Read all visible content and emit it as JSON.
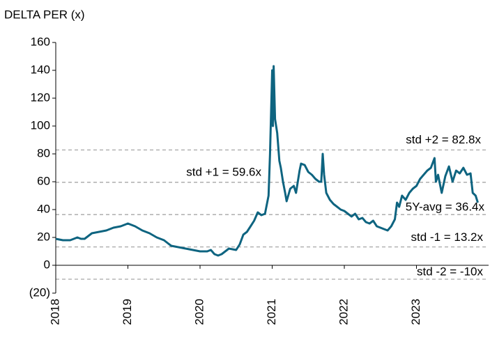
{
  "chart_data": {
    "type": "line",
    "title": "DELTA PER (x)",
    "xlim": [
      2018,
      2024
    ],
    "xticks": [
      2018,
      2019,
      2020,
      2021,
      2022,
      2023
    ],
    "ylim": [
      -20,
      160
    ],
    "yticks": [
      {
        "value": -20,
        "label": "(20)"
      },
      0,
      20,
      40,
      60,
      80,
      100,
      120,
      140,
      160
    ],
    "bands": [
      {
        "label": "std +2 = 82.8x",
        "value": 82.8
      },
      {
        "label": "std +1 = 59.6x",
        "value": 59.6
      },
      {
        "label": "5Y-avg = 36.4x",
        "value": 36.4
      },
      {
        "label": "std -1 = 13.2x",
        "value": 13.2
      },
      {
        "label": "std -2 = -10x",
        "value": -10
      }
    ],
    "band_color": "#a6a6a6",
    "series": [
      {
        "color": "#0e6480",
        "x": [
          2018.0,
          2018.1,
          2018.2,
          2018.25,
          2018.3,
          2018.35,
          2018.4,
          2018.45,
          2018.5,
          2018.6,
          2018.7,
          2018.8,
          2018.9,
          2019.0,
          2019.1,
          2019.2,
          2019.3,
          2019.4,
          2019.5,
          2019.55,
          2019.6,
          2019.7,
          2019.8,
          2019.9,
          2020.0,
          2020.1,
          2020.15,
          2020.2,
          2020.25,
          2020.3,
          2020.35,
          2020.4,
          2020.5,
          2020.55,
          2020.6,
          2020.65,
          2020.7,
          2020.75,
          2020.8,
          2020.85,
          2020.9,
          2020.95,
          2020.97,
          2021.0,
          2021.01,
          2021.02,
          2021.04,
          2021.07,
          2021.1,
          2021.12,
          2021.15,
          2021.18,
          2021.2,
          2021.25,
          2021.3,
          2021.33,
          2021.38,
          2021.4,
          2021.45,
          2021.5,
          2021.55,
          2021.6,
          2021.65,
          2021.68,
          2021.7,
          2021.72,
          2021.75,
          2021.8,
          2021.85,
          2021.9,
          2021.95,
          2022.0,
          2022.05,
          2022.1,
          2022.15,
          2022.2,
          2022.25,
          2022.3,
          2022.35,
          2022.4,
          2022.45,
          2022.5,
          2022.55,
          2022.6,
          2022.65,
          2022.7,
          2022.73,
          2022.76,
          2022.8,
          2022.85,
          2022.9,
          2022.95,
          2023.0,
          2023.05,
          2023.1,
          2023.15,
          2023.2,
          2023.25,
          2023.27,
          2023.3,
          2023.35,
          2023.4,
          2023.45,
          2023.5,
          2023.55,
          2023.6,
          2023.65,
          2023.7,
          2023.75,
          2023.78,
          2023.82,
          2023.85
        ],
        "values": [
          19,
          18,
          18,
          19,
          20,
          19,
          19,
          21,
          23,
          24,
          25,
          27,
          28,
          30,
          28,
          25,
          23,
          20,
          18,
          16,
          14,
          13,
          12,
          11,
          10,
          10,
          11,
          8,
          7,
          8,
          10,
          12,
          11,
          15,
          22,
          24,
          28,
          32,
          38,
          36,
          37,
          50,
          80,
          140,
          100,
          143,
          105,
          95,
          75,
          70,
          60,
          52,
          46,
          55,
          57,
          52,
          68,
          73,
          72,
          67,
          65,
          62,
          60,
          60,
          80,
          65,
          52,
          47,
          44,
          42,
          40,
          39,
          37,
          35,
          37,
          33,
          34,
          31,
          30,
          32,
          28,
          27,
          26,
          25,
          28,
          33,
          45,
          42,
          50,
          47,
          52,
          55,
          57,
          62,
          65,
          68,
          70,
          77,
          60,
          65,
          52,
          64,
          71,
          60,
          68,
          66,
          70,
          65,
          66,
          52,
          50,
          45
        ]
      }
    ]
  }
}
